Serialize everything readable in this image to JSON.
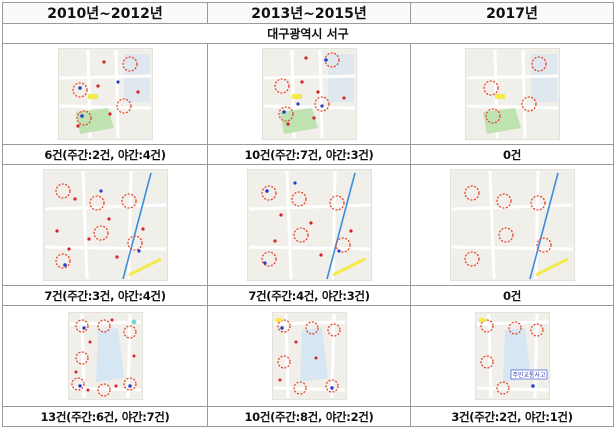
{
  "columns": [
    "2010년~2012년",
    "2013년~2015년",
    "2017년"
  ],
  "region": "대구광역시 서구",
  "rows": [
    {
      "captions": [
        "6건(주간:2건, 야간:4건)",
        "10건(주간:7건, 야간:3건)",
        "0건"
      ]
    },
    {
      "captions": [
        "7건(주간:3건, 야간:4건)",
        "7건(주간:4건, 야간:3건)",
        "0건"
      ]
    },
    {
      "captions": [
        "13건(주간:6건, 야간:7건)",
        "10건(주간:8건, 야간:2건)",
        "3건(주간:2건, 야간:1건)"
      ]
    }
  ],
  "map_labels": {
    "school_sign": "주민교통사고"
  },
  "colors": {
    "hotspot_circle": "#e8452c",
    "night_dot": "#d6202a",
    "day_dot": "#2a3fc8",
    "rail_line": "#3a8ee0",
    "park": "#bfe3b0",
    "water": "#d6e6f2"
  }
}
